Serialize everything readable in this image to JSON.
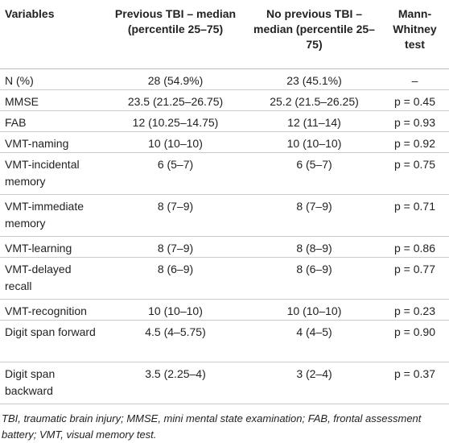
{
  "table": {
    "header": [
      "Variables",
      "Previous TBI – median (percentile 25–75)",
      "No previous TBI – median (percentile 25–75)",
      "Mann-Whitney test"
    ],
    "rows": [
      [
        "N (%)",
        "28 (54.9%)",
        "23 (45.1%)",
        "–"
      ],
      [
        "MMSE",
        "23.5 (21.25–26.75)",
        "25.2 (21.5–26.25)",
        "p = 0.45"
      ],
      [
        "FAB",
        "12 (10.25–14.75)",
        "12 (11–14)",
        "p = 0.93"
      ],
      [
        "VMT-naming",
        "10 (10–10)",
        "10 (10–10)",
        "p = 0.92"
      ],
      [
        "VMT-incidental memory",
        "6 (5–7)",
        "6 (5–7)",
        "p = 0.75"
      ],
      [
        "VMT-immediate memory",
        "8 (7–9)",
        "8 (7–9)",
        "p = 0.71"
      ],
      [
        "VMT-learning",
        "8 (7–9)",
        "8 (8–9)",
        "p = 0.86"
      ],
      [
        "VMT-delayed recall",
        "8 (6–9)",
        "8 (6–9)",
        "p = 0.77"
      ],
      [
        "VMT-recognition",
        "10 (10–10)",
        "10 (10–10)",
        "p = 0.23"
      ],
      [
        "Digit span forward",
        "4.5 (4–5.75)",
        "4 (4–5)",
        "p = 0.90"
      ],
      [
        "Digit span backward",
        "3.5 (2.25–4)",
        "3 (2–4)",
        "p = 0.37"
      ]
    ],
    "footnote": "TBI, traumatic brain injury; MMSE, mini mental state examination; FAB, frontal assessment battery; VMT, visual memory test."
  }
}
